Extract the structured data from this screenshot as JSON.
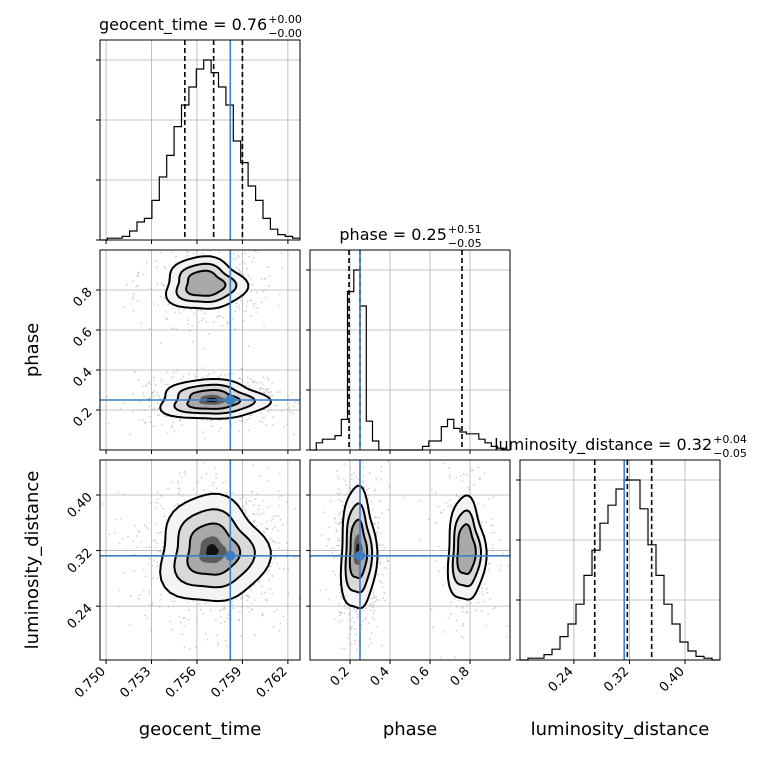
{
  "chart_data": {
    "type": "corner",
    "parameters": [
      "geocent_time",
      "phase",
      "luminosity_distance"
    ],
    "ranges": {
      "geocent_time": [
        0.7496,
        0.7628
      ],
      "phase": [
        0.0,
        1.0
      ],
      "luminosity_distance": [
        0.1624,
        0.4504
      ]
    },
    "ticks": {
      "geocent_time": [
        0.75,
        0.753,
        0.756,
        0.759,
        0.762
      ],
      "phase": [
        0.2,
        0.4,
        0.6,
        0.8
      ],
      "luminosity_distance": [
        0.24,
        0.32,
        0.4
      ]
    },
    "tick_labels": {
      "geocent_time": [
        "0.750",
        "0.753",
        "0.756",
        "0.759",
        "0.762"
      ],
      "phase": [
        "0.2",
        "0.4",
        "0.6",
        "0.8"
      ],
      "luminosity_distance": [
        "0.24",
        "0.32",
        "0.40"
      ]
    },
    "truths": {
      "geocent_time": 0.7582,
      "phase": 0.25,
      "luminosity_distance": 0.3125
    },
    "titles": [
      {
        "param": "geocent_time",
        "value": "0.76",
        "plus": "+0.00",
        "minus": "−0.00"
      },
      {
        "param": "phase",
        "value": "0.25",
        "plus": "+0.51",
        "minus": "−0.05"
      },
      {
        "param": "luminosity_distance",
        "value": "0.32",
        "plus": "+0.04",
        "minus": "−0.05"
      }
    ],
    "quantiles": {
      "geocent_time": [
        0.7552,
        0.7571,
        0.759
      ],
      "phase": [
        0.195,
        0.25,
        0.76
      ],
      "luminosity_distance": [
        0.27,
        0.317,
        0.352
      ]
    },
    "histograms": {
      "geocent_time": {
        "edges_range": [
          0.7496,
          0.7628
        ],
        "counts": [
          0,
          0.01,
          0.01,
          0.02,
          0.05,
          0.1,
          0.12,
          0.22,
          0.35,
          0.47,
          0.63,
          0.75,
          0.85,
          0.95,
          1.0,
          0.93,
          0.85,
          0.75,
          0.55,
          0.43,
          0.3,
          0.22,
          0.12,
          0.06,
          0.03,
          0.02,
          0.01
        ]
      },
      "phase": {
        "edges_range": [
          0.0,
          1.0
        ],
        "counts": [
          0.0,
          0.04,
          0.06,
          0.06,
          0.08,
          0.17,
          0.88,
          1.0,
          0.8,
          0.16,
          0.05,
          0.0,
          0.0,
          0.0,
          0.0,
          0.0,
          0.0,
          0.0,
          0.02,
          0.05,
          0.05,
          0.13,
          0.17,
          0.12,
          0.1,
          0.09,
          0.09,
          0.06,
          0.04,
          0.02,
          0.01,
          0.0
        ]
      },
      "luminosity_distance": {
        "edges_range": [
          0.1624,
          0.4504
        ],
        "counts": [
          0.0,
          0.01,
          0.01,
          0.03,
          0.06,
          0.13,
          0.2,
          0.31,
          0.47,
          0.61,
          0.76,
          0.86,
          0.95,
          1.0,
          1.0,
          0.84,
          0.64,
          0.47,
          0.31,
          0.2,
          0.1,
          0.05,
          0.02,
          0.01,
          0.0
        ]
      }
    }
  }
}
